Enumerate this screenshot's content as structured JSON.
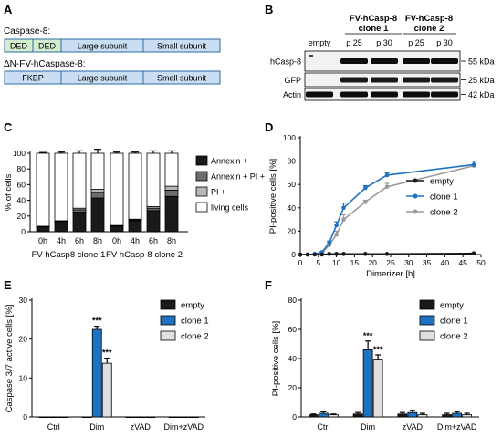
{
  "panel_letters": {
    "A": "A",
    "B": "B",
    "C": "C",
    "D": "D",
    "E": "E",
    "F": "F"
  },
  "panel_a": {
    "construct1": {
      "label": "Caspase-8:",
      "domains": [
        "DED",
        "DED",
        "Large subunit",
        "Small subunit"
      ]
    },
    "construct2": {
      "label": "ΔN-FV-hCaspase-8:",
      "domains": [
        "FKBP",
        "Large subunit",
        "Small subunit"
      ]
    },
    "colors": {
      "ded": "#d5edcf",
      "subunit": "#c9def2",
      "fkbp": "#c9def2",
      "outline": "#2c6ba0"
    }
  },
  "panel_b": {
    "group1": "FV-hCasp-8 clone 1",
    "group2": "FV-hCasp-8 clone 2",
    "group1_lines": [
      "FV-hCasp-8",
      "clone 1"
    ],
    "group2_lines": [
      "FV-hCasp-8",
      "clone 2"
    ],
    "lanes": [
      "empty",
      "p 25",
      "p 30",
      "p 25",
      "p 30"
    ],
    "blots": [
      {
        "label": "hCasp-8",
        "size": "55 kDa"
      },
      {
        "label": "GFP",
        "size": "25 kDa"
      },
      {
        "label": "Actin",
        "size": "42 kDa"
      }
    ]
  },
  "chart_data": [
    {
      "panel": "C",
      "type": "bar",
      "stacked": true,
      "ylabel": "% of cells",
      "ylim": [
        0,
        100
      ],
      "yticks": [
        0,
        20,
        40,
        60,
        80,
        100
      ],
      "categories": [
        "0h",
        "4h",
        "6h",
        "8h",
        "0h",
        "4h",
        "6h",
        "8h"
      ],
      "groups": [
        "FV-hCasp8 clone 1",
        "FV-hCasp-8 clone 2"
      ],
      "series": [
        {
          "name": "Annexin +",
          "color": "#1a1a1a",
          "values": [
            6,
            13,
            25,
            43,
            7,
            14,
            27,
            45
          ]
        },
        {
          "name": "Annexin + PI +",
          "color": "#6d6d6d",
          "values": [
            0.5,
            0.5,
            3,
            7,
            0.5,
            1,
            3,
            8
          ]
        },
        {
          "name": "PI +",
          "color": "#b7b7b7",
          "values": [
            0.5,
            0.5,
            2,
            4,
            0.5,
            1,
            2,
            5
          ]
        },
        {
          "name": "living cells",
          "color": "#ffffff",
          "values": [
            93,
            86,
            70,
            46,
            92,
            84,
            68,
            42
          ]
        }
      ],
      "error_top": [
        1,
        1.5,
        3,
        5,
        1.5,
        1.5,
        3,
        3
      ]
    },
    {
      "panel": "D",
      "type": "line",
      "xlabel": "Dimerizer [h]",
      "ylabel": "PI-positive cells [%]",
      "xlim": [
        0,
        50
      ],
      "ylim": [
        0,
        100
      ],
      "xticks": [
        0,
        5,
        10,
        15,
        20,
        25,
        30,
        35,
        40,
        45,
        50
      ],
      "yticks": [
        0,
        20,
        40,
        60,
        80,
        100
      ],
      "legend_position": "right",
      "series": [
        {
          "name": "empty",
          "color": "#1a1a1a",
          "x": [
            0,
            2,
            4,
            6,
            8,
            10,
            12,
            18,
            24,
            48
          ],
          "y": [
            0,
            0,
            0,
            0,
            0.5,
            0.5,
            0.5,
            0.5,
            0.5,
            1
          ],
          "err": [
            0,
            0,
            0,
            0,
            0,
            0,
            0,
            0,
            0,
            0.5
          ]
        },
        {
          "name": "clone 1",
          "color": "#1e72c2",
          "x": [
            0,
            2,
            4,
            6,
            8,
            10,
            12,
            18,
            24,
            48
          ],
          "y": [
            0,
            0,
            0.5,
            2,
            10,
            25,
            40,
            57,
            68,
            77
          ],
          "err": [
            0,
            0,
            0,
            0.5,
            1.5,
            3,
            4,
            2,
            2,
            3
          ]
        },
        {
          "name": "clone 2",
          "color": "#9a9a9a",
          "x": [
            0,
            2,
            4,
            6,
            8,
            10,
            12,
            18,
            24,
            48
          ],
          "y": [
            0,
            0,
            0.5,
            1.5,
            8,
            17,
            30,
            45,
            58,
            76
          ],
          "err": [
            0,
            0,
            0,
            0.5,
            1.5,
            3,
            4,
            1.5,
            3,
            4
          ]
        }
      ]
    },
    {
      "panel": "E",
      "type": "bar",
      "ylabel": "Caspase 3/7 active cells [%]",
      "ylim": [
        0,
        30
      ],
      "yticks": [
        0,
        10,
        20,
        30
      ],
      "categories": [
        "Ctrl",
        "Dim",
        "zVAD",
        "Dim+zVAD"
      ],
      "legend_position": "top-right",
      "series": [
        {
          "name": "empty",
          "color": "#1a1a1a",
          "values": [
            0,
            0,
            0,
            0
          ],
          "err": [
            0,
            0,
            0,
            0
          ]
        },
        {
          "name": "clone 1",
          "color": "#1e72c2",
          "values": [
            0,
            22.5,
            0,
            0
          ],
          "err": [
            0,
            0.8,
            0,
            0
          ]
        },
        {
          "name": "clone 2",
          "color": "#e0e0e0",
          "values": [
            0,
            13.8,
            0,
            0
          ],
          "err": [
            0,
            1.3,
            0,
            0
          ]
        }
      ],
      "annotations": [
        {
          "category": "Dim",
          "series": "clone 1",
          "text": "***"
        },
        {
          "category": "Dim",
          "series": "clone 2",
          "text": "***"
        }
      ]
    },
    {
      "panel": "F",
      "type": "bar",
      "ylabel": "PI-positive cells [%]",
      "ylim": [
        0,
        80
      ],
      "yticks": [
        0,
        20,
        40,
        60,
        80
      ],
      "categories": [
        "Ctrl",
        "Dim",
        "zVAD",
        "Dim+zVAD"
      ],
      "legend_position": "top-right",
      "series": [
        {
          "name": "empty",
          "color": "#1a1a1a",
          "values": [
            1.5,
            2,
            2,
            1.5
          ],
          "err": [
            0.5,
            1,
            1,
            1
          ]
        },
        {
          "name": "clone 1",
          "color": "#1e72c2",
          "values": [
            2.5,
            46,
            3,
            2.5
          ],
          "err": [
            1,
            6,
            1.5,
            1
          ]
        },
        {
          "name": "clone 2",
          "color": "#e0e0e0",
          "values": [
            1.5,
            39,
            1.5,
            1.5
          ],
          "err": [
            0.5,
            3.5,
            1,
            1
          ]
        }
      ],
      "annotations": [
        {
          "category": "Dim",
          "series": "clone 1",
          "text": "***"
        },
        {
          "category": "Dim",
          "series": "clone 2",
          "text": "***"
        }
      ]
    }
  ]
}
